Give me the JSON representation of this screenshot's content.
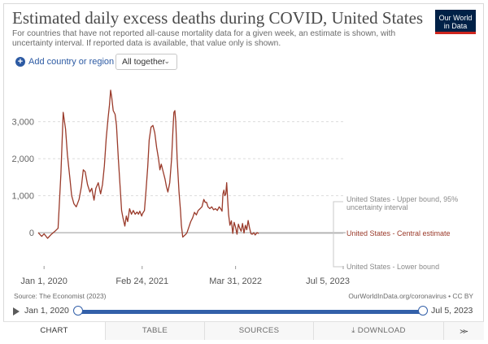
{
  "header": {
    "title": "Estimated daily excess deaths during COVID, United States",
    "subtitle": "For countries that have not reported all-cause mortality data for a given week, an estimate is shown, with uncertainty interval. If reported data is available, that value only is shown.",
    "logo_line1": "Our World",
    "logo_line2": "in Data"
  },
  "controls": {
    "add_label": "Add country or region",
    "select_value": "All together"
  },
  "chart_data": {
    "type": "line",
    "y_ticks": [
      "3,000",
      "2,000",
      "1,000",
      "0"
    ],
    "y_tick_values": [
      3000,
      2000,
      1000,
      0
    ],
    "x_ticks": [
      "Jan 1, 2020",
      "Feb 24, 2021",
      "Mar 31, 2022",
      "Jul 5, 2023"
    ],
    "x_tick_days": [
      0,
      420,
      820,
      1281
    ],
    "x_range_days": [
      -25,
      1281
    ],
    "ylim": [
      -700,
      4200
    ],
    "grid": "horizontal dashed",
    "series": [
      {
        "name": "United States - Upper bound, 95% uncertainty interval",
        "color": "#8a8a8a",
        "values": []
      },
      {
        "name": "United States - Central estimate",
        "color": "#9a3a2a",
        "points": [
          [
            -25,
            0
          ],
          [
            -10,
            -100
          ],
          [
            0,
            -30
          ],
          [
            15,
            -150
          ],
          [
            30,
            -50
          ],
          [
            45,
            30
          ],
          [
            60,
            120
          ],
          [
            72,
            1600
          ],
          [
            82,
            3250
          ],
          [
            92,
            2800
          ],
          [
            100,
            2100
          ],
          [
            110,
            1500
          ],
          [
            118,
            1000
          ],
          [
            128,
            780
          ],
          [
            138,
            700
          ],
          [
            150,
            900
          ],
          [
            160,
            1250
          ],
          [
            168,
            1700
          ],
          [
            176,
            1650
          ],
          [
            186,
            1300
          ],
          [
            196,
            1100
          ],
          [
            204,
            1200
          ],
          [
            214,
            880
          ],
          [
            222,
            1200
          ],
          [
            232,
            1350
          ],
          [
            242,
            1050
          ],
          [
            250,
            1300
          ],
          [
            258,
            1800
          ],
          [
            266,
            2550
          ],
          [
            274,
            3100
          ],
          [
            280,
            3450
          ],
          [
            285,
            3850
          ],
          [
            290,
            3650
          ],
          [
            296,
            3300
          ],
          [
            304,
            3200
          ],
          [
            310,
            2900
          ],
          [
            318,
            2000
          ],
          [
            326,
            1200
          ],
          [
            332,
            600
          ],
          [
            338,
            400
          ],
          [
            346,
            180
          ],
          [
            352,
            450
          ],
          [
            358,
            300
          ],
          [
            366,
            650
          ],
          [
            374,
            500
          ],
          [
            382,
            600
          ],
          [
            390,
            500
          ],
          [
            398,
            560
          ],
          [
            404,
            500
          ],
          [
            410,
            580
          ],
          [
            418,
            450
          ],
          [
            422,
            520
          ],
          [
            430,
            600
          ],
          [
            436,
            1100
          ],
          [
            444,
            1800
          ],
          [
            450,
            2500
          ],
          [
            458,
            2850
          ],
          [
            466,
            2900
          ],
          [
            474,
            2700
          ],
          [
            482,
            2300
          ],
          [
            490,
            2000
          ],
          [
            496,
            1700
          ],
          [
            502,
            1850
          ],
          [
            510,
            1650
          ],
          [
            518,
            1450
          ],
          [
            524,
            1250
          ],
          [
            530,
            1100
          ],
          [
            538,
            1350
          ],
          [
            546,
            2000
          ],
          [
            552,
            2800
          ],
          [
            556,
            3250
          ],
          [
            560,
            3300
          ],
          [
            564,
            3000
          ],
          [
            570,
            2000
          ],
          [
            578,
            1100
          ],
          [
            584,
            600
          ],
          [
            588,
            200
          ],
          [
            594,
            -120
          ],
          [
            600,
            -80
          ],
          [
            606,
            -50
          ],
          [
            612,
            0
          ],
          [
            620,
            150
          ],
          [
            628,
            300
          ],
          [
            636,
            400
          ],
          [
            644,
            550
          ],
          [
            652,
            480
          ],
          [
            660,
            600
          ],
          [
            668,
            650
          ],
          [
            676,
            700
          ],
          [
            684,
            900
          ],
          [
            690,
            820
          ],
          [
            696,
            820
          ],
          [
            702,
            700
          ],
          [
            710,
            650
          ],
          [
            718,
            700
          ],
          [
            726,
            620
          ],
          [
            734,
            650
          ],
          [
            742,
            600
          ],
          [
            750,
            700
          ],
          [
            756,
            650
          ],
          [
            762,
            580
          ],
          [
            766,
            1050
          ],
          [
            770,
            1150
          ],
          [
            774,
            1000
          ],
          [
            778,
            1050
          ],
          [
            782,
            1350
          ],
          [
            786,
            900
          ],
          [
            790,
            500
          ],
          [
            796,
            200
          ],
          [
            802,
            320
          ],
          [
            808,
            -20
          ],
          [
            814,
            280
          ],
          [
            820,
            150
          ],
          [
            826,
            -40
          ],
          [
            832,
            230
          ],
          [
            838,
            120
          ],
          [
            844,
            40
          ],
          [
            850,
            250
          ],
          [
            856,
            -10
          ],
          [
            862,
            200
          ],
          [
            868,
            80
          ],
          [
            874,
            330
          ],
          [
            880,
            120
          ],
          [
            886,
            -30
          ],
          [
            892,
            -40
          ],
          [
            898,
            0
          ],
          [
            904,
            -60
          ],
          [
            912,
            0
          ],
          [
            920,
            -20
          ]
        ]
      },
      {
        "name": "United States - Lower bound",
        "color": "#8a8a8a",
        "values": []
      }
    ],
    "legend_placement": "right"
  },
  "footer": {
    "source": "Source: The Economist (2023)",
    "license": "OurWorldInData.org/coronavirus • CC BY"
  },
  "timeline": {
    "start": "Jan 1, 2020",
    "end": "Jul 5, 2023"
  },
  "tabs": [
    {
      "label": "CHART"
    },
    {
      "label": "TABLE"
    },
    {
      "label": "SOURCES"
    },
    {
      "label": "DOWNLOAD"
    }
  ],
  "colors": {
    "accent": "#3360a9",
    "series_central": "#9a3a2a",
    "bounds": "#8a8a8a"
  }
}
